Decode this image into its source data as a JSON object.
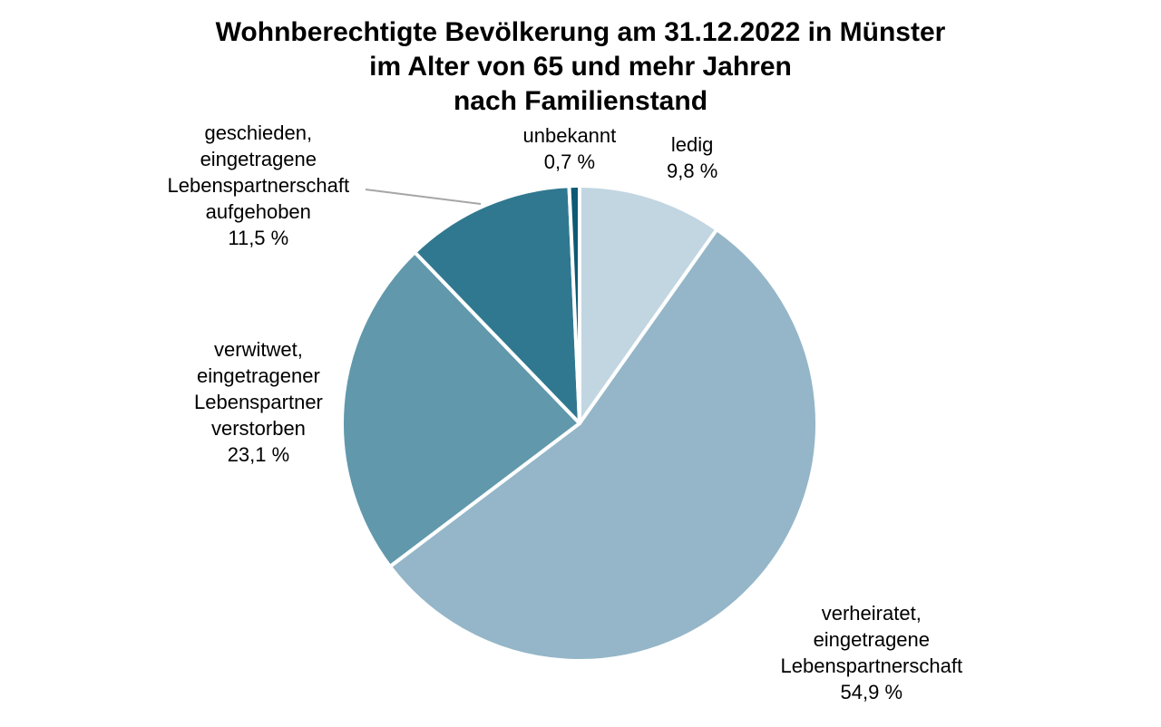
{
  "chart_data": {
    "type": "pie",
    "title": [
      "Wohnberechtigte Bevölkerung am 31.12.2022 in Münster",
      "im Alter von 65 und mehr Jahren",
      "nach Familienstand"
    ],
    "slices": [
      {
        "label_lines": [
          "ledig"
        ],
        "value": 9.8,
        "value_label": "9,8 %",
        "color": "#c2d6e2"
      },
      {
        "label_lines": [
          "verheiratet,",
          "eingetragene",
          "Lebenspartnerschaft"
        ],
        "value": 54.9,
        "value_label": "54,9 %",
        "color": "#94b6c8"
      },
      {
        "label_lines": [
          "verwitwet,",
          "eingetragener",
          "Lebenspartner",
          "verstorben"
        ],
        "value": 23.1,
        "value_label": "23,1 %",
        "color": "#6198ab"
      },
      {
        "label_lines": [
          "geschieden,",
          "eingetragene",
          "Lebenspartnerschaft",
          "aufgehoben"
        ],
        "value": 11.5,
        "value_label": "11,5 %",
        "color": "#307890"
      },
      {
        "label_lines": [
          "unbekannt"
        ],
        "value": 0.7,
        "value_label": "0,7 %",
        "color": "#0e5a74"
      }
    ],
    "start_angle": "12 o'clock",
    "direction": "clockwise",
    "legend": "none",
    "labels": "outside"
  }
}
